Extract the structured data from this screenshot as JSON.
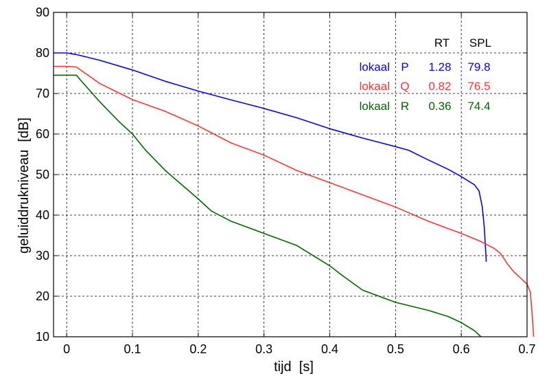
{
  "chart_data": {
    "type": "line",
    "xlabel": "tijd  [s]",
    "ylabel": "geluiddrukniveau  [dB]",
    "xlim": [
      -0.02,
      0.7
    ],
    "ylim": [
      10,
      90
    ],
    "xticks": [
      0,
      0.1,
      0.2,
      0.3,
      0.4,
      0.5,
      0.6,
      0.7
    ],
    "xtick_labels": [
      "0",
      "0.1",
      "0.2",
      "0.3",
      "0.4",
      "0.5",
      "0.6",
      "0.7"
    ],
    "yticks": [
      10,
      20,
      30,
      40,
      50,
      60,
      70,
      80,
      90
    ],
    "ytick_labels": [
      "10",
      "20",
      "30",
      "40",
      "50",
      "60",
      "70",
      "80",
      "90"
    ],
    "grid": true,
    "legend": {
      "header": {
        "rt": "RT",
        "spl": "SPL"
      },
      "rows": [
        {
          "label": "lokaal",
          "name": "P",
          "rt": "1.28",
          "spl": "79.8",
          "color": "#0000ff"
        },
        {
          "label": "lokaal",
          "name": "Q",
          "rt": "0.82",
          "spl": "76.5",
          "color": "#ff3333"
        },
        {
          "label": "lokaal",
          "name": "R",
          "rt": "0.36",
          "spl": "74.4",
          "color": "#006600"
        }
      ]
    },
    "series": [
      {
        "name": "P",
        "color": "#0000ff",
        "x": [
          -0.02,
          0.0,
          0.015,
          0.05,
          0.1,
          0.15,
          0.2,
          0.25,
          0.3,
          0.35,
          0.4,
          0.45,
          0.5,
          0.52,
          0.55,
          0.58,
          0.6,
          0.61,
          0.62,
          0.627,
          0.632,
          0.635,
          0.638
        ],
        "y": [
          80.0,
          80.0,
          79.6,
          78.2,
          75.8,
          73.0,
          70.6,
          68.4,
          66.3,
          64.0,
          61.3,
          59.0,
          56.9,
          56.0,
          53.6,
          51.3,
          49.5,
          48.5,
          47.5,
          46.0,
          42.0,
          37.0,
          28.5
        ]
      },
      {
        "name": "Q",
        "color": "#ff3333",
        "x": [
          -0.02,
          0.0,
          0.015,
          0.05,
          0.1,
          0.15,
          0.2,
          0.25,
          0.3,
          0.35,
          0.4,
          0.45,
          0.5,
          0.55,
          0.6,
          0.63,
          0.65,
          0.66,
          0.67,
          0.68,
          0.69,
          0.7,
          0.705,
          0.708,
          0.71
        ],
        "y": [
          76.7,
          76.7,
          76.5,
          72.5,
          68.5,
          65.6,
          62.0,
          57.8,
          54.8,
          51.0,
          48.0,
          45.0,
          42.0,
          38.5,
          35.5,
          33.5,
          31.8,
          30.5,
          28.0,
          26.0,
          24.5,
          23.0,
          21.0,
          15.0,
          10.0
        ]
      },
      {
        "name": "R",
        "color": "#006600",
        "x": [
          -0.02,
          0.0,
          0.015,
          0.02,
          0.05,
          0.08,
          0.1,
          0.12,
          0.15,
          0.2,
          0.22,
          0.25,
          0.3,
          0.35,
          0.4,
          0.42,
          0.45,
          0.5,
          0.55,
          0.58,
          0.6,
          0.62,
          0.63
        ],
        "y": [
          74.5,
          74.5,
          74.5,
          73.5,
          68.0,
          63.0,
          60.0,
          56.0,
          51.0,
          44.0,
          41.0,
          38.5,
          35.5,
          32.5,
          27.5,
          25.0,
          21.5,
          18.5,
          16.5,
          15.0,
          13.5,
          11.5,
          10.0
        ]
      }
    ]
  }
}
